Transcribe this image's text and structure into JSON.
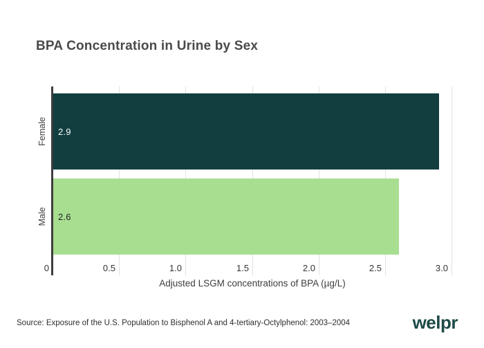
{
  "chart": {
    "title": "BPA Concentration in Urine by Sex"
  },
  "chart_data": {
    "type": "bar",
    "orientation": "horizontal",
    "categories": [
      "Female",
      "Male"
    ],
    "values": [
      2.9,
      2.6
    ],
    "value_labels": [
      "2.9",
      "2.6"
    ],
    "bar_colors": [
      "#123e40",
      "#a7de90"
    ],
    "value_label_colors": [
      "#ffffff",
      "#1f1f1f"
    ],
    "xlabel": "Adjusted LSGM concentrations of BPA (µg/L)",
    "ylabel": "",
    "xlim": [
      0,
      3.0
    ],
    "xticks": [
      0,
      0.5,
      1.0,
      1.5,
      2.0,
      2.5,
      3.0
    ],
    "xtick_labels": [
      "0",
      "0.5",
      "1.0",
      "1.5",
      "2.0",
      "2.5",
      "3.0"
    ],
    "grid": "vertical",
    "legend": "none"
  },
  "footer": {
    "source": "Source: Exposure of the U.S. Population to Bisphenol A and 4-tertiary-Octylphenol: 2003–2004",
    "logo": "welpr"
  },
  "colors": {
    "title_text": "#4a4a4a",
    "axis_line": "#3d3d3d",
    "gridline": "#e0e0e0",
    "female_bar": "#123e40",
    "male_bar": "#a7de90",
    "logo": "#1d4a47"
  }
}
